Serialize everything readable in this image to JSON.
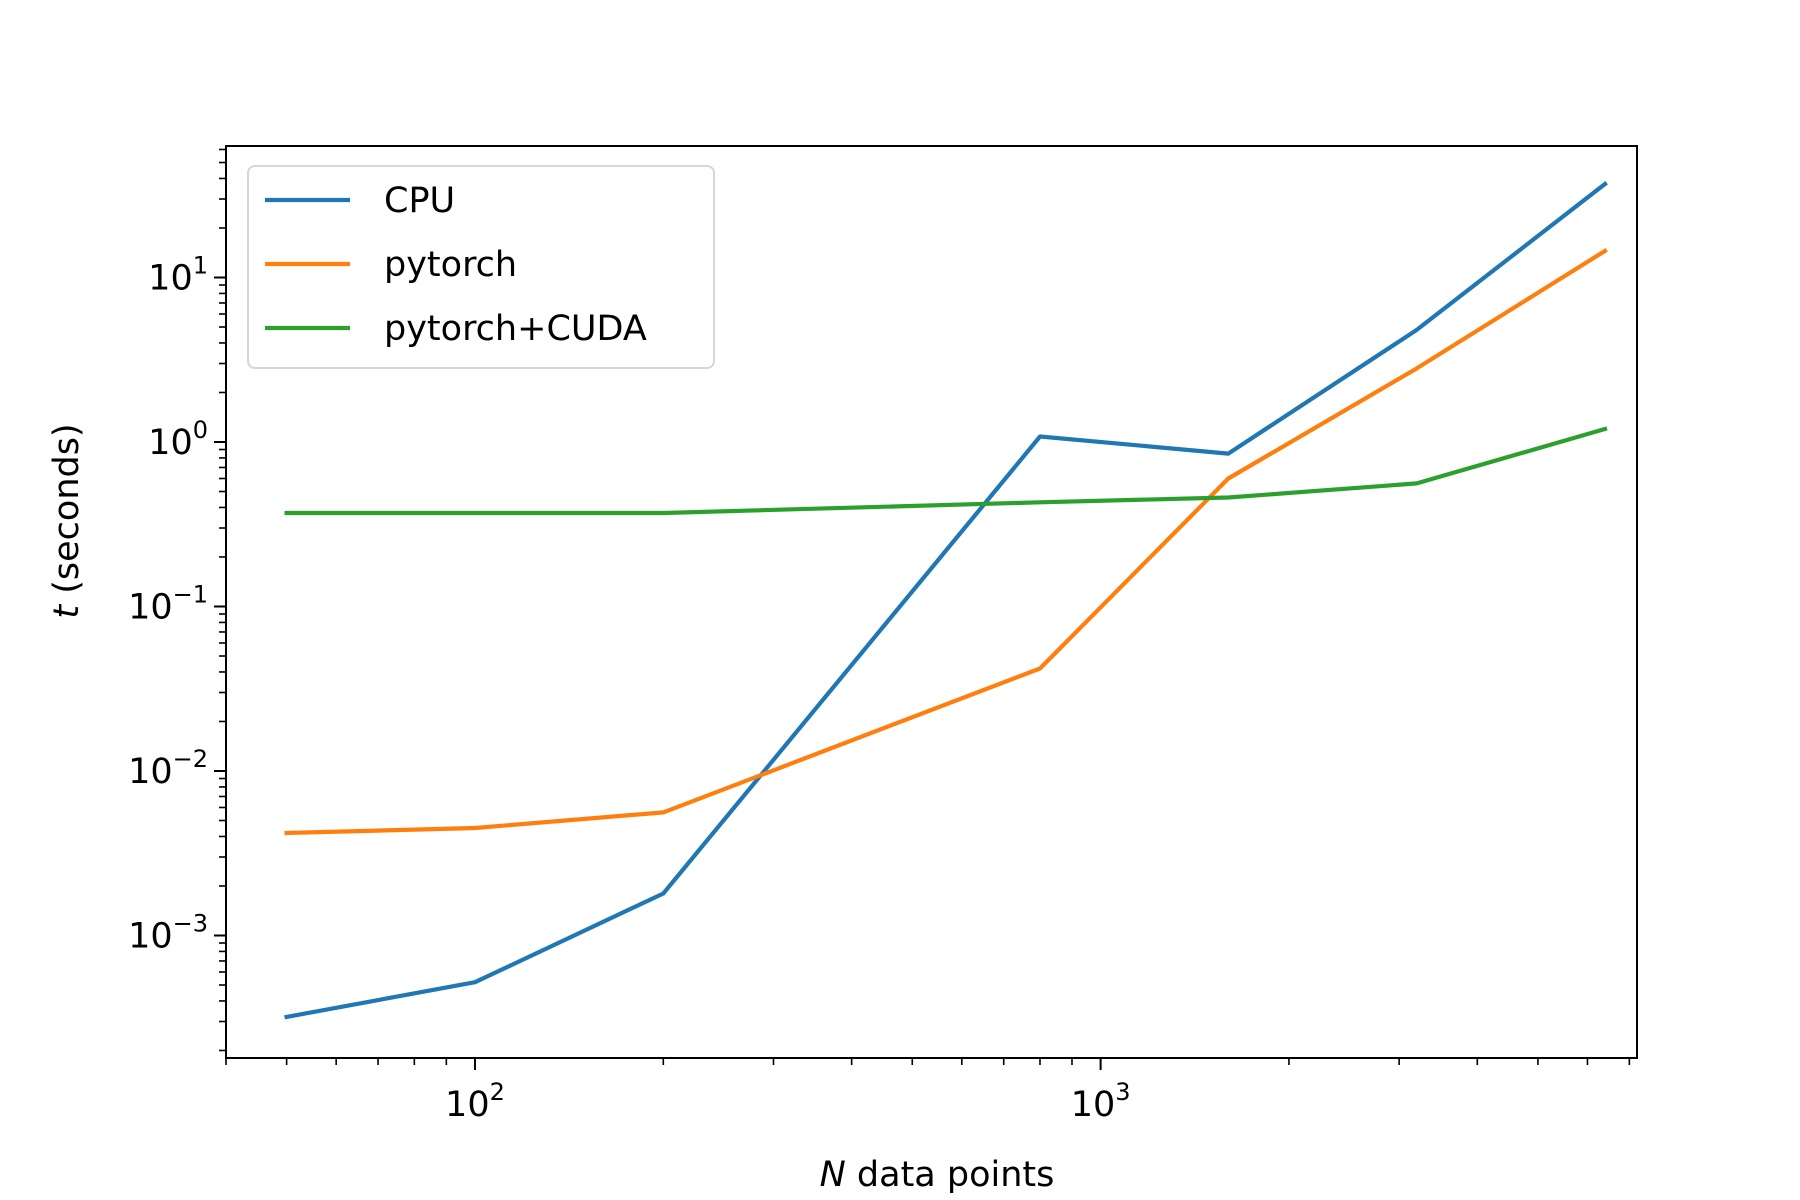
{
  "chart_data": {
    "type": "line",
    "title": "",
    "xlabel": "data points",
    "xlabel_var": "N",
    "ylabel": "(seconds)",
    "ylabel_var": "t",
    "xscale": "log",
    "yscale": "log",
    "xlim": [
      40,
      7200
    ],
    "ylim": [
      0.00018,
      63
    ],
    "grid": false,
    "legend_position": "top-left",
    "x_ticks": [
      {
        "base": "10",
        "exp": "2",
        "value": 100
      },
      {
        "base": "10",
        "exp": "3",
        "value": 1000
      }
    ],
    "y_ticks": [
      {
        "base": "10",
        "exp": "−3",
        "value": 0.001
      },
      {
        "base": "10",
        "exp": "−2",
        "value": 0.01
      },
      {
        "base": "10",
        "exp": "−1",
        "value": 0.1
      },
      {
        "base": "10",
        "exp": "0",
        "value": 1
      },
      {
        "base": "10",
        "exp": "1",
        "value": 10
      }
    ],
    "x": [
      50,
      100,
      200,
      800,
      1600,
      3200,
      6400
    ],
    "series": [
      {
        "name": "CPU",
        "color": "#1f77b4",
        "values": [
          0.00032,
          0.00052,
          0.0018,
          1.08,
          0.85,
          4.8,
          37
        ]
      },
      {
        "name": "pytorch",
        "color": "#ff7f0e",
        "values": [
          0.0042,
          0.0045,
          0.0056,
          0.042,
          0.6,
          2.8,
          14.5
        ]
      },
      {
        "name": "pytorch+CUDA",
        "color": "#2ca02c",
        "values": [
          0.37,
          0.37,
          0.37,
          0.43,
          0.46,
          0.56,
          1.2
        ]
      }
    ]
  }
}
